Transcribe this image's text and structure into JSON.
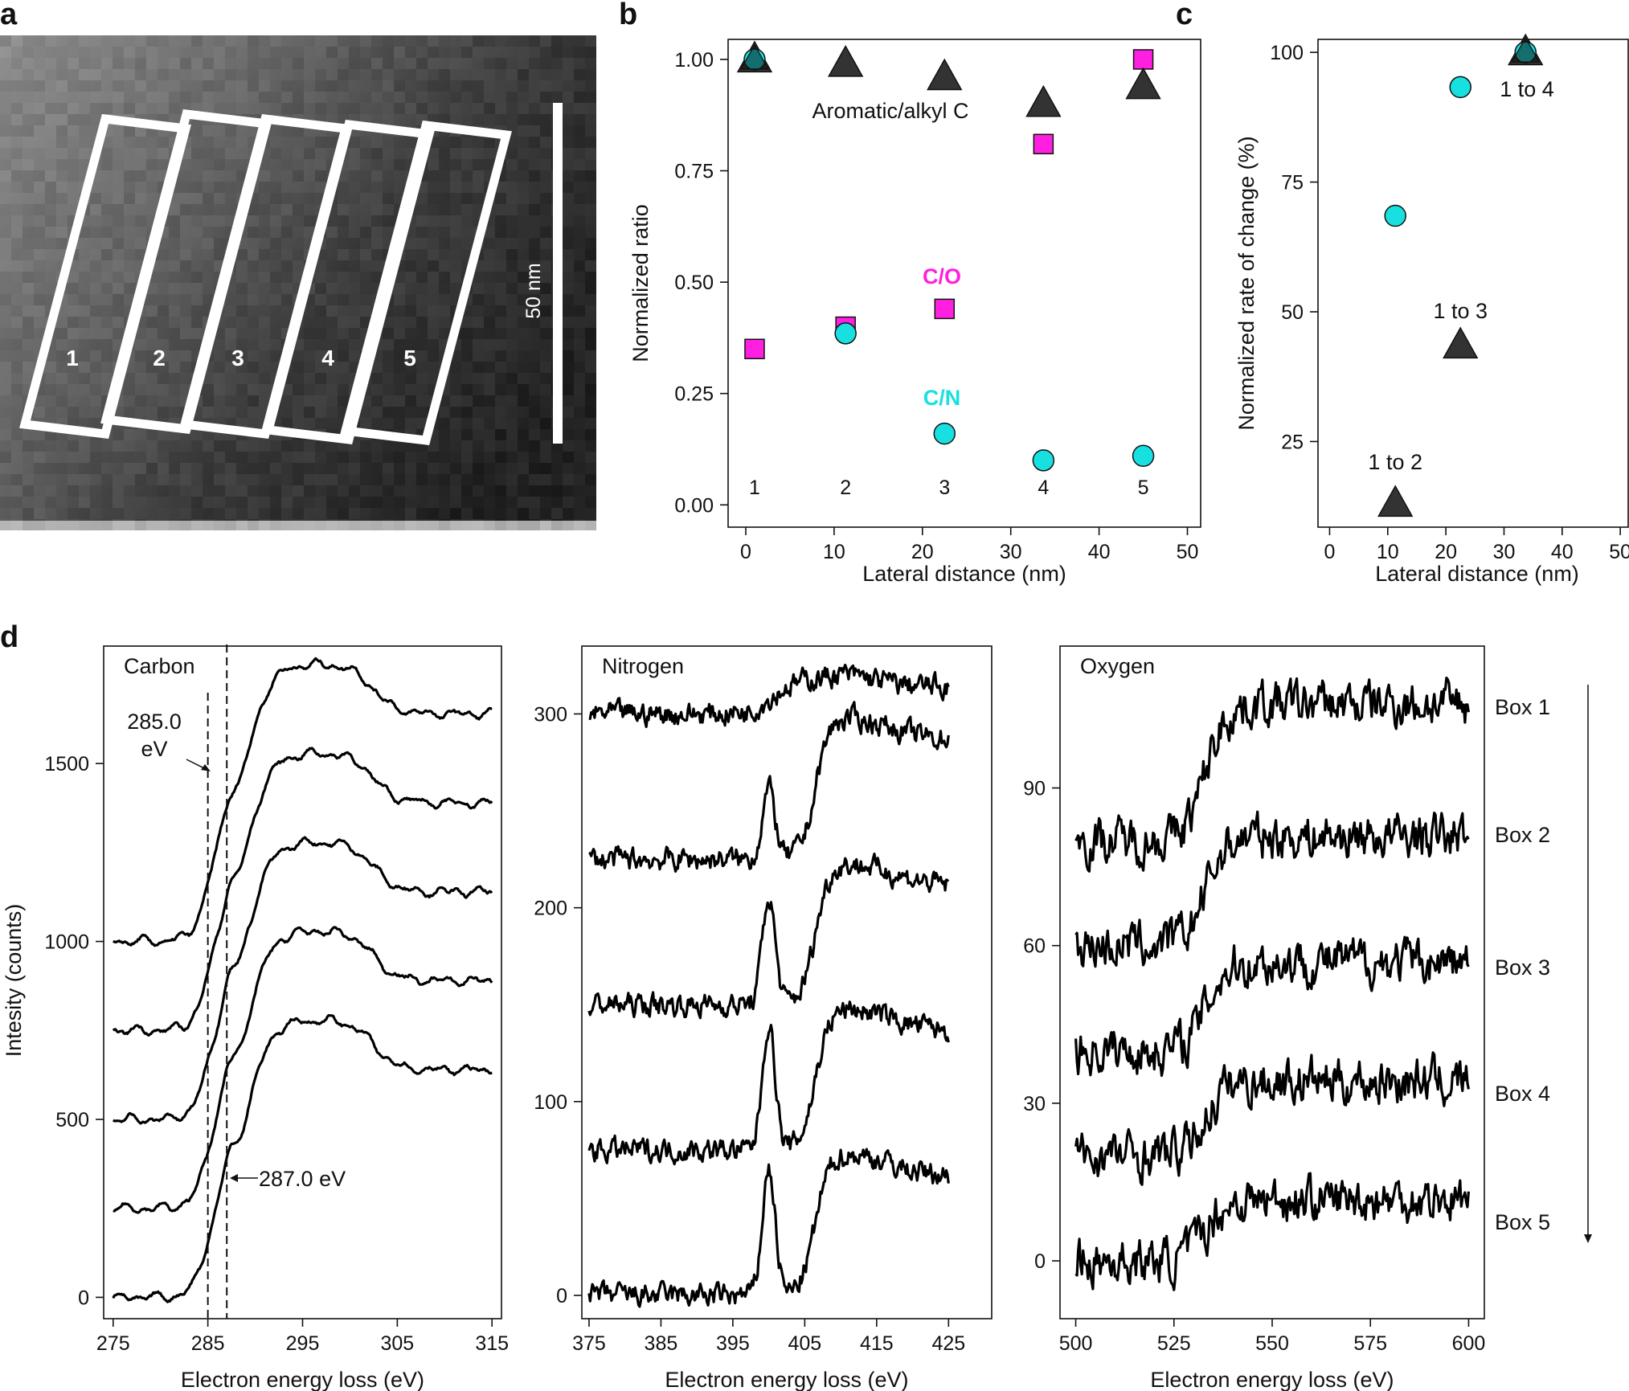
{
  "panel_labels": {
    "a": "a",
    "b": "b",
    "c": "c",
    "d": "d"
  },
  "colors": {
    "co_series": "#ff1fe0",
    "cn_series": "#19e0e0",
    "aromatic_series": "#333333"
  },
  "panel_a": {
    "boxes": [
      "1",
      "2",
      "3",
      "4",
      "5"
    ],
    "scale_bar_label": "50 nm"
  },
  "chart_data": [
    {
      "panel": "b",
      "type": "scatter",
      "xlabel": "Lateral distance (nm)",
      "ylabel": "Normalized ratio",
      "xlim": [
        -2,
        51.5
      ],
      "ylim": [
        -0.05,
        1.045
      ],
      "xticks": [
        "0",
        "10",
        "20",
        "30",
        "40",
        "50"
      ],
      "yticks": [
        "0.00",
        "0.25",
        "0.50",
        "0.75",
        "1.00"
      ],
      "box_numbers": [
        "1",
        "2",
        "3",
        "4",
        "5"
      ],
      "series": [
        {
          "name": "Aromatic/alkyl C",
          "marker": "triangle",
          "x": [
            1,
            11.3,
            22.5,
            33.7,
            45
          ],
          "y": [
            1.0,
            0.99,
            0.96,
            0.9,
            0.94
          ]
        },
        {
          "name": "C/O",
          "marker": "square",
          "x": [
            1,
            11.3,
            22.5,
            33.7,
            45
          ],
          "y": [
            0.35,
            0.4,
            0.44,
            0.81,
            1.0
          ]
        },
        {
          "name": "C/N",
          "marker": "circle",
          "x": [
            1,
            11.3,
            22.5,
            33.7,
            45
          ],
          "y": [
            1.0,
            0.385,
            0.16,
            0.1,
            0.11
          ]
        }
      ]
    },
    {
      "panel": "c",
      "type": "scatter",
      "xlabel": "Lateral distance (nm)",
      "ylabel": "Normalized rate of change (%)",
      "xlim": [
        -2,
        51.5
      ],
      "ylim": [
        8.5,
        102.5
      ],
      "xticks": [
        "0",
        "10",
        "20",
        "30",
        "40",
        "50"
      ],
      "yticks": [
        "25",
        "50",
        "75",
        "100"
      ],
      "series": [
        {
          "marker": "circle",
          "x": [
            11.3,
            22.5,
            33.7
          ],
          "y": [
            68.5,
            93.3,
            100
          ]
        },
        {
          "marker": "triangle",
          "x": [
            11.3,
            22.5,
            33.7
          ],
          "y": [
            13,
            43.5,
            100
          ]
        }
      ],
      "annotations": [
        "1 to 2",
        "1 to 3",
        "1 to 4"
      ]
    },
    {
      "panel": "d",
      "type": "line",
      "ylabel": "Intesity (counts)",
      "boxes": [
        "Box 1",
        "Box 2",
        "Box 3",
        "Box 4",
        "Box 5"
      ],
      "subplots": [
        {
          "title": "Carbon",
          "xlabel": "Electron energy loss (eV)",
          "xlim": [
            274,
            316
          ],
          "ylim": [
            -60,
            1830
          ],
          "xticks": [
            "275",
            "285",
            "295",
            "305",
            "315"
          ],
          "yticks": [
            "0",
            "500",
            "1000",
            "1500"
          ],
          "offsets": [
            1000,
            750,
            500,
            250,
            0
          ],
          "annotations": {
            "peak1_value": "285.0",
            "peak1_unit": "eV",
            "peak2": "287.0 eV"
          }
        },
        {
          "title": "Nitrogen",
          "xlabel": "Electron energy loss (eV)",
          "xlim": [
            374,
            431
          ],
          "ylim": [
            -12,
            335
          ],
          "xticks": [
            "375",
            "385",
            "395",
            "405",
            "415",
            "425"
          ],
          "yticks": [
            "0",
            "100",
            "200",
            "300"
          ],
          "offsets": [
            300,
            225,
            150,
            75,
            0
          ]
        },
        {
          "title": "Oxygen",
          "xlabel": "Electron energy loss (eV)",
          "xlim": [
            496,
            604
          ],
          "ylim": [
            -11,
            117
          ],
          "xticks": [
            "500",
            "525",
            "550",
            "575",
            "600"
          ],
          "yticks": [
            "0",
            "30",
            "60",
            "90"
          ],
          "offsets": [
            80,
            60,
            40,
            20,
            0
          ]
        }
      ]
    }
  ]
}
